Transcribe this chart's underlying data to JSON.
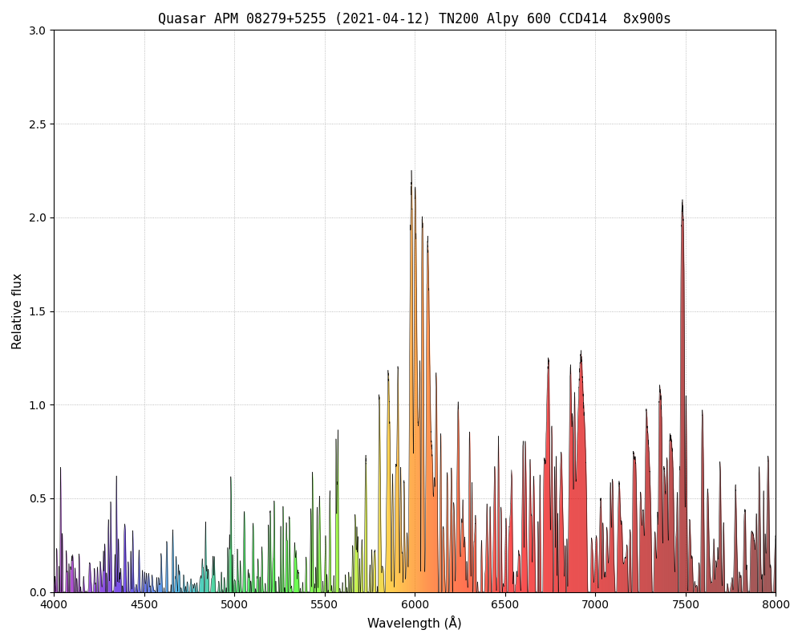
{
  "title": "Quasar APM 08279+5255 (2021-04-12) TN200 Alpy 600 CCD414  8x900s",
  "xlabel": "Wavelength (Å)",
  "ylabel": "Relative flux",
  "xlim": [
    4000,
    8000
  ],
  "ylim": [
    0,
    3
  ],
  "yticks": [
    0,
    0.5,
    1,
    1.5,
    2,
    2.5,
    3
  ],
  "xticks": [
    4000,
    4500,
    5000,
    5500,
    6000,
    6500,
    7000,
    7500,
    8000
  ],
  "background_color": "#ffffff",
  "grid_color": "#aaaaaa",
  "title_fontsize": 12,
  "label_fontsize": 11
}
